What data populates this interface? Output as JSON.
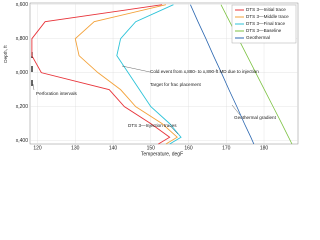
{
  "chart_data": {
    "type": "line",
    "x_label": "Temperature, degF",
    "y_label": "Depth, ft",
    "y": [
      600,
      700,
      800,
      900,
      1000,
      1100,
      1200,
      1300,
      1380,
      1420
    ],
    "series": [
      {
        "name": "DTS 3—Initial trace",
        "color": "#e8343a",
        "values": [
          153,
          122,
          118.5,
          118.5,
          121,
          139,
          143,
          150,
          155,
          152
        ]
      },
      {
        "name": "DTS 3—Middle trace",
        "color": "#f3a23a",
        "values": [
          154,
          135,
          130,
          131,
          136,
          142,
          146,
          153,
          157,
          154
        ]
      },
      {
        "name": "DTS 3—Final trace",
        "color": "#2cc3d8",
        "values": [
          156,
          146,
          142,
          141,
          144,
          147,
          150,
          155,
          158,
          155
        ]
      },
      {
        "name": "DTS 3—Baseline",
        "color": "#7cc242",
        "values": [
          168.6,
          170.9,
          173.2,
          175.5,
          177.8,
          180.1,
          182.4,
          184.7,
          186.5,
          187.4
        ]
      },
      {
        "name": "Geothermal",
        "color": "#2a66b0",
        "values": [
          160.5,
          162.5,
          164.6,
          166.6,
          168.7,
          170.7,
          172.8,
          174.8,
          176.5,
          177.3
        ]
      }
    ],
    "xlim": [
      118,
      189
    ],
    "xticks": [
      120,
      130,
      140,
      150,
      160,
      170,
      180
    ],
    "ylim": [
      590,
      1420
    ],
    "yticks": [
      {
        "value": 600,
        "label": "x,600"
      },
      {
        "value": 800,
        "label": "x,800"
      },
      {
        "value": 1000,
        "label": "x,000"
      },
      {
        "value": 1200,
        "label": "x,200"
      },
      {
        "value": 1400,
        "label": "x,400"
      }
    ],
    "y_inverted": true,
    "grid": true,
    "legend": "upper right",
    "annotations": [
      "Perforation intervals",
      "Cold event from x,880- to x,890-ft MD due to injection",
      "Target for frac placement",
      "DTS 3—Injection traces",
      "Geothermal gradient"
    ]
  }
}
